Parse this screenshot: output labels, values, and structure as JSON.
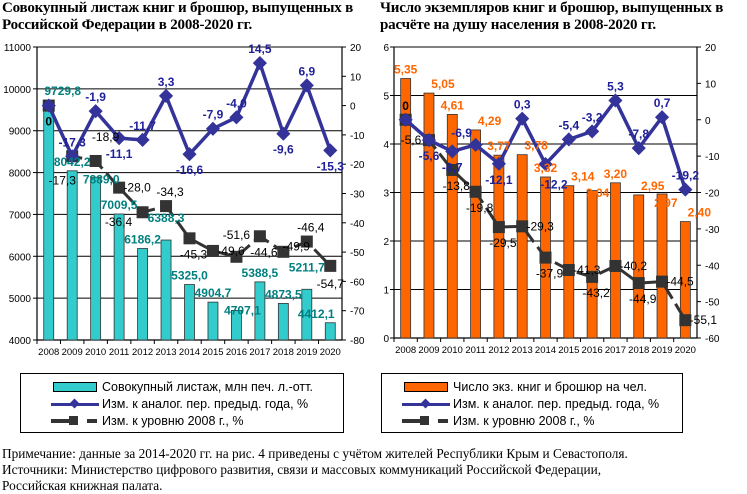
{
  "chart_data": [
    {
      "type": "bar",
      "title": "Совокупный листаж книг и брошюр, выпущенных в Российской Федерации в 2008-2020 гг.",
      "categories": [
        "2008",
        "2009",
        "2010",
        "2011",
        "2012",
        "2013",
        "2014",
        "2015",
        "2016",
        "2017",
        "2018",
        "2019",
        "2020"
      ],
      "ylim": [
        4000,
        11000
      ],
      "y2lim": [
        -80,
        20
      ],
      "grid": true,
      "legend_placement": "bottom",
      "series": [
        {
          "name": "Совокупный листаж, млн печ. л.-отт.",
          "type": "bar",
          "axis": "left",
          "color": "#33CCCC",
          "values": [
            9729.8,
            8042.2,
            7889.0,
            7009.5,
            6186.2,
            6388.3,
            5325.0,
            4904.7,
            4707.1,
            5388.5,
            4873.5,
            5211.7,
            4412.1
          ]
        },
        {
          "name": "Изм. к аналог. пер. предыд. года, %",
          "type": "line",
          "axis": "right",
          "color": "#333399",
          "values": [
            0,
            -17.3,
            -1.9,
            -11.1,
            -11.7,
            3.3,
            -16.6,
            -7.9,
            -4.0,
            14.5,
            -9.6,
            6.9,
            -15.3
          ]
        },
        {
          "name": "Изм. к уровню 2008 г., %",
          "type": "line",
          "axis": "right",
          "color": "#333333",
          "values": [
            0,
            -17.3,
            -18.9,
            -28.0,
            -36.4,
            -34.3,
            -45.3,
            -49.6,
            -51.6,
            -44.6,
            -49.9,
            -46.4,
            -54.7
          ]
        }
      ]
    },
    {
      "type": "bar",
      "title": "Число экземпляров книг и брошюр, выпущенных в расчёте на душу населения в 2008-2020 гг.",
      "categories": [
        "2008",
        "2009",
        "2010",
        "2011",
        "2012",
        "2013",
        "2014",
        "2015",
        "2016",
        "2017",
        "2018",
        "2019",
        "2020"
      ],
      "ylim": [
        0,
        6
      ],
      "y2lim": [
        -60,
        20
      ],
      "grid": true,
      "legend_placement": "bottom",
      "series": [
        {
          "name": "Число экз. книг и брошюр на чел.",
          "type": "bar",
          "axis": "left",
          "color": "#FF6600",
          "values": [
            5.35,
            5.05,
            4.61,
            4.29,
            3.77,
            3.78,
            3.32,
            3.14,
            3.04,
            3.2,
            2.95,
            2.97,
            2.4
          ]
        },
        {
          "name": "Изм. к аналог. пер. предыд. года, %",
          "type": "line",
          "axis": "right",
          "color": "#333399",
          "values": [
            0,
            -5.6,
            -8.7,
            -6.9,
            -12.1,
            0.3,
            -12.2,
            -5.4,
            -3.2,
            5.3,
            -7.8,
            0.7,
            -19.2
          ]
        },
        {
          "name": "Изм. к уровню 2008 г., %",
          "type": "line",
          "axis": "right",
          "color": "#333333",
          "values": [
            0,
            -5.6,
            -13.8,
            -19.8,
            -29.5,
            -29.3,
            -37.9,
            -41.3,
            -43.2,
            -40.2,
            -44.9,
            -44.5,
            -55.1
          ]
        }
      ]
    }
  ],
  "note": {
    "line1": "Примечание: данные за 2014-2020 гг. на рис. 4 приведены с учётом жителей Республики Крым и Севастополя.",
    "line2": "Источники: Министерство цифрового развития, связи и массовых коммуникаций Российской Федерации,",
    "line3": "Российская книжная палата."
  }
}
